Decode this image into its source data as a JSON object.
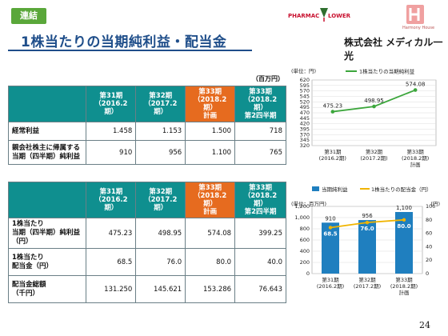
{
  "badge": "連結",
  "title": "1株当たりの当期純利益・配当金",
  "logos": {
    "pharmacy": "PHARMAC",
    "flower": "LOWER",
    "harmony": "Harmony House",
    "company": "株式会社 メディカル一光"
  },
  "unit_top": "（百万円）",
  "table1": {
    "headers": [
      "",
      "第31期\n（2016.2期）",
      "第32期\n（2017.2期）",
      "第33期\n（2018.2期）\n計画",
      "第33期\n（2018.2期）\n第2四半期"
    ],
    "rows": [
      {
        "label": "経常利益",
        "values": [
          "1.458",
          "1.153",
          "1.500",
          "718"
        ]
      },
      {
        "label": "親会社株主に帰属する\n当期（四半期）純利益",
        "values": [
          "910",
          "956",
          "1.100",
          "765"
        ]
      }
    ]
  },
  "table2": {
    "headers": [
      "",
      "第31期\n（2016.2期）",
      "第32期\n（2017.2期）",
      "第33期\n（2018.2期）\n計画",
      "第33期\n（2018.2期）\n第2四半期"
    ],
    "rows": [
      {
        "label": "1株当たり\n当期（四半期）純利益（円）",
        "values": [
          "475.23",
          "498.95",
          "574.08",
          "399.25"
        ]
      },
      {
        "label": "1株当たり\n配当金（円）",
        "values": [
          "68.5",
          "76.0",
          "80.0",
          "40.0"
        ]
      },
      {
        "label": "配当金総額\n（千円）",
        "values": [
          "131.250",
          "145.621",
          "153.286",
          "76.643"
        ]
      }
    ]
  },
  "chart_data": [
    {
      "type": "line",
      "unit_label": "(単位：円)",
      "legend": [
        "1株当たりの当期純利益"
      ],
      "categories": [
        "第31期\n(2016.2期)",
        "第32期\n(2017.2期)",
        "第33期\n(2018.2期)\n計画"
      ],
      "series": [
        {
          "name": "1株当たりの当期純利益",
          "values": [
            475.23,
            498.95,
            574.08
          ],
          "labels": [
            "475.23",
            "498.95",
            "574.08"
          ]
        }
      ],
      "yticks": [
        "320",
        "345",
        "370",
        "395",
        "420",
        "445",
        "470",
        "495",
        "520",
        "545",
        "570",
        "595",
        "620"
      ],
      "ylim": [
        320,
        620
      ],
      "colors": {
        "line": "#3ca63c"
      },
      "grid": true
    },
    {
      "type": "bar",
      "unit_label_left": "(単位：百万円)",
      "unit_label_right": "(円)",
      "legend": [
        "当期純利益",
        "1株当たりの配当金（円）"
      ],
      "categories": [
        "第31期\n(2016.2期)",
        "第32期\n(2017.2期)",
        "第33期\n(2018.2期)\n計画"
      ],
      "series": [
        {
          "name": "当期純利益",
          "values": [
            910,
            956,
            1100
          ],
          "labels": [
            "910",
            "956",
            "1,100"
          ]
        },
        {
          "name": "1株当たりの配当金（円）",
          "values": [
            68.5,
            76.0,
            80.0
          ],
          "labels": [
            "68.5",
            "76.0",
            "80.0"
          ]
        }
      ],
      "yticks_left": [
        "0",
        "200",
        "400",
        "600",
        "800",
        "1,000",
        "1,200"
      ],
      "yticks_right": [
        "0",
        "20",
        "40",
        "60",
        "80",
        "100"
      ],
      "ylim_left": [
        0,
        1200
      ],
      "ylim_right": [
        0,
        100
      ],
      "colors": {
        "bar": "#1f7fbf",
        "line": "#f0b400"
      },
      "grid": true
    }
  ],
  "page_number": "24"
}
